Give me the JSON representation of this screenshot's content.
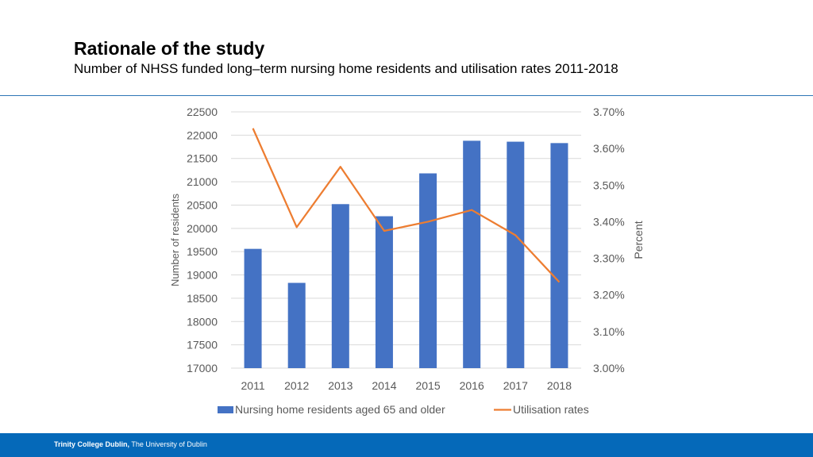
{
  "slide": {
    "title": "Rationale of the study",
    "subtitle": "Number of NHSS funded long–term nursing home residents and utilisation rates 2011-2018"
  },
  "footer": {
    "institution": "Trinity College Dublin,",
    "tagline": "The University of Dublin"
  },
  "colors": {
    "bars": "#4472c4",
    "line": "#ed7d31",
    "footer": "#0569b9",
    "divider": "#2e75b6"
  },
  "chart_data": {
    "type": "bar",
    "categories": [
      "2011",
      "2012",
      "2013",
      "2014",
      "2015",
      "2016",
      "2017",
      "2018"
    ],
    "series": [
      {
        "name": "Nursing home residents aged 65 and older",
        "type": "bar",
        "axis": "left",
        "values": [
          19560,
          18830,
          20520,
          20260,
          21180,
          21880,
          21860,
          21830
        ]
      },
      {
        "name": "Utilisation rates",
        "type": "line",
        "axis": "right",
        "values": [
          3.655,
          3.385,
          3.55,
          3.375,
          3.4,
          3.432,
          3.363,
          3.235
        ]
      }
    ],
    "ylabel": "Number of residents",
    "y2label": "Percent",
    "ylim": [
      17000,
      22500
    ],
    "y2lim": [
      3.0,
      3.7
    ],
    "yticks": [
      "17000",
      "17500",
      "18000",
      "18500",
      "19000",
      "19500",
      "20000",
      "20500",
      "21000",
      "21500",
      "22000",
      "22500"
    ],
    "y2ticks": [
      "3.00%",
      "3.10%",
      "3.20%",
      "3.30%",
      "3.40%",
      "3.50%",
      "3.60%",
      "3.70%"
    ],
    "grid": true,
    "legend_position": "bottom"
  }
}
